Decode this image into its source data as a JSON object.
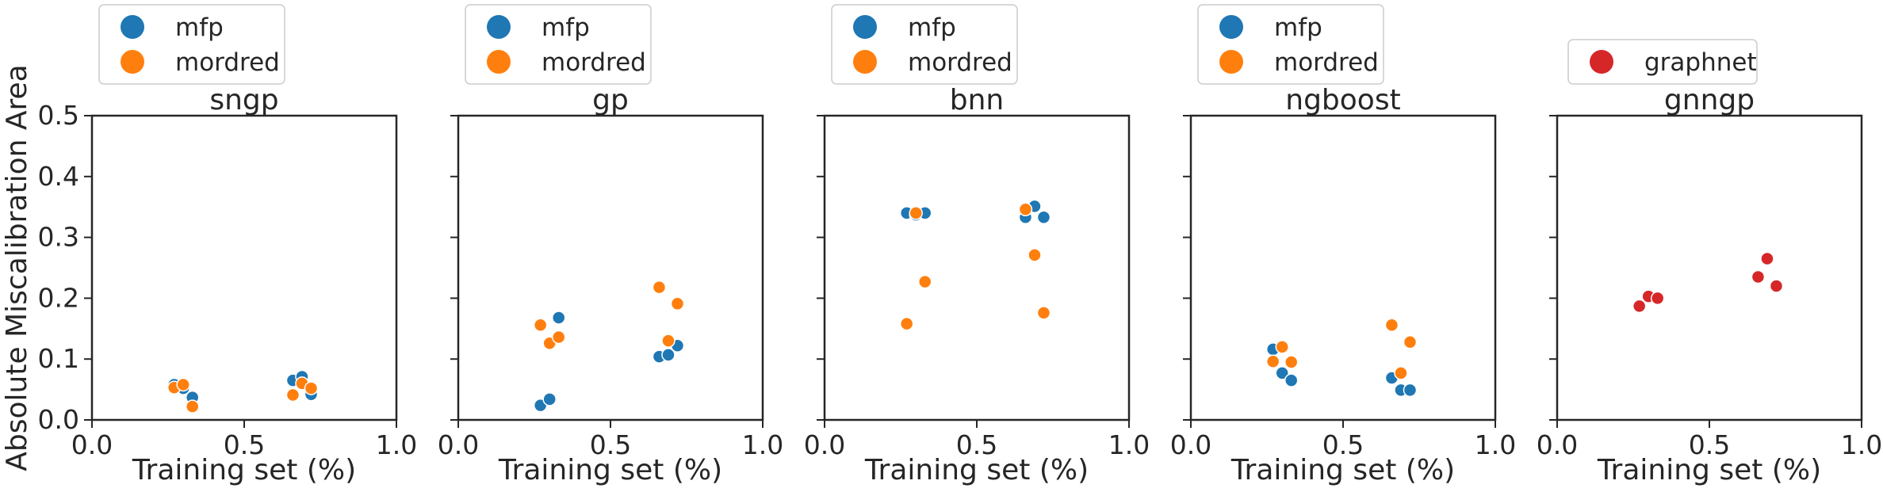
{
  "chart_data": [
    {
      "type": "scatter",
      "title": "sngp",
      "xlabel": "Training set (%)",
      "ylabel": "Absolute Miscalibration Area",
      "xlim": [
        0.0,
        1.0
      ],
      "ylim": [
        0.0,
        0.5
      ],
      "xticks": [
        "0.0",
        "0.5",
        "1.0"
      ],
      "yticks": [
        "0.0",
        "0.1",
        "0.2",
        "0.3",
        "0.4",
        "0.5"
      ],
      "grid": false,
      "legend_position": "above plot, left",
      "series": [
        {
          "name": "mfp",
          "color": "#1f77b4",
          "points": [
            [
              0.27,
              0.058
            ],
            [
              0.3,
              0.052
            ],
            [
              0.33,
              0.037
            ],
            [
              0.66,
              0.065
            ],
            [
              0.69,
              0.071
            ],
            [
              0.72,
              0.042
            ]
          ]
        },
        {
          "name": "mordred",
          "color": "#ff7f0e",
          "points": [
            [
              0.27,
              0.053
            ],
            [
              0.3,
              0.058
            ],
            [
              0.33,
              0.022
            ],
            [
              0.66,
              0.041
            ],
            [
              0.69,
              0.06
            ],
            [
              0.72,
              0.052
            ]
          ]
        }
      ]
    },
    {
      "type": "scatter",
      "title": "gp",
      "xlabel": "Training set (%)",
      "xlim": [
        0.0,
        1.0
      ],
      "ylim": [
        0.0,
        0.5
      ],
      "xticks": [
        "0.0",
        "0.5",
        "1.0"
      ],
      "grid": false,
      "legend_position": "above plot, left",
      "series": [
        {
          "name": "mfp",
          "color": "#1f77b4",
          "points": [
            [
              0.27,
              0.024
            ],
            [
              0.3,
              0.034
            ],
            [
              0.33,
              0.168
            ],
            [
              0.66,
              0.104
            ],
            [
              0.69,
              0.107
            ],
            [
              0.72,
              0.122
            ]
          ]
        },
        {
          "name": "mordred",
          "color": "#ff7f0e",
          "points": [
            [
              0.27,
              0.156
            ],
            [
              0.3,
              0.126
            ],
            [
              0.33,
              0.136
            ],
            [
              0.66,
              0.218
            ],
            [
              0.69,
              0.13
            ],
            [
              0.72,
              0.191
            ]
          ]
        }
      ]
    },
    {
      "type": "scatter",
      "title": "bnn",
      "xlabel": "Training set (%)",
      "xlim": [
        0.0,
        1.0
      ],
      "ylim": [
        0.0,
        0.5
      ],
      "xticks": [
        "0.0",
        "0.5",
        "1.0"
      ],
      "grid": false,
      "legend_position": "above plot, left",
      "series": [
        {
          "name": "mfp",
          "color": "#1f77b4",
          "points": [
            [
              0.27,
              0.34
            ],
            [
              0.3,
              0.337
            ],
            [
              0.33,
              0.34
            ],
            [
              0.66,
              0.333
            ],
            [
              0.69,
              0.351
            ],
            [
              0.72,
              0.333
            ]
          ]
        },
        {
          "name": "mordred",
          "color": "#ff7f0e",
          "points": [
            [
              0.27,
              0.158
            ],
            [
              0.3,
              0.34
            ],
            [
              0.33,
              0.227
            ],
            [
              0.66,
              0.346
            ],
            [
              0.69,
              0.271
            ],
            [
              0.72,
              0.176
            ]
          ]
        }
      ]
    },
    {
      "type": "scatter",
      "title": "ngboost",
      "xlabel": "Training set (%)",
      "xlim": [
        0.0,
        1.0
      ],
      "ylim": [
        0.0,
        0.5
      ],
      "xticks": [
        "0.0",
        "0.5",
        "1.0"
      ],
      "grid": false,
      "legend_position": "above plot, left",
      "series": [
        {
          "name": "mfp",
          "color": "#1f77b4",
          "points": [
            [
              0.27,
              0.116
            ],
            [
              0.3,
              0.077
            ],
            [
              0.33,
              0.065
            ],
            [
              0.66,
              0.069
            ],
            [
              0.69,
              0.049
            ],
            [
              0.72,
              0.049
            ]
          ]
        },
        {
          "name": "mordred",
          "color": "#ff7f0e",
          "points": [
            [
              0.27,
              0.096
            ],
            [
              0.3,
              0.12
            ],
            [
              0.33,
              0.095
            ],
            [
              0.66,
              0.156
            ],
            [
              0.69,
              0.077
            ],
            [
              0.72,
              0.128
            ]
          ]
        }
      ]
    },
    {
      "type": "scatter",
      "title": "gnngp",
      "xlabel": "Training set (%)",
      "xlim": [
        0.0,
        1.0
      ],
      "ylim": [
        0.0,
        0.5
      ],
      "xticks": [
        "0.0",
        "0.5",
        "1.0"
      ],
      "grid": false,
      "legend_position": "above plot, left",
      "series": [
        {
          "name": "graphnet",
          "color": "#d62728",
          "points": [
            [
              0.27,
              0.187
            ],
            [
              0.3,
              0.203
            ],
            [
              0.33,
              0.2
            ],
            [
              0.66,
              0.235
            ],
            [
              0.69,
              0.265
            ],
            [
              0.72,
              0.22
            ]
          ]
        }
      ]
    }
  ]
}
